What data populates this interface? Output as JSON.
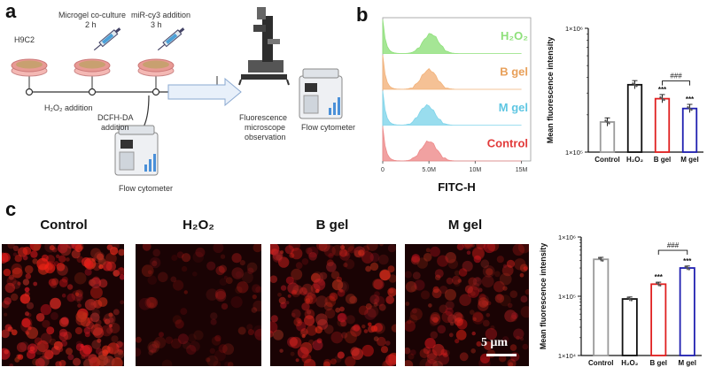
{
  "panels": {
    "a": "a",
    "b": "b",
    "c": "c"
  },
  "workflow": {
    "step1": "H9C2",
    "step2_line1": "Microgel co-culture",
    "step2_line2": "2 h",
    "step3_line1": "miR-cy3 addition",
    "step3_line2": "3 h",
    "below1": "H₂O₂ addition",
    "below2_line1": "DCFH-DA",
    "below2_line2": "addition",
    "flow1": "Flow cytometer",
    "micro_line1": "Fluorescence",
    "micro_line2": "microscope",
    "micro_line3": "observation",
    "flow2": "Flow cytometer"
  },
  "histogram": {
    "xlabel": "FITC-H",
    "xticks": [
      "0",
      "5.0M",
      "10M",
      "15M"
    ],
    "series": [
      {
        "name": "H₂O₂",
        "color": "#8ee07a",
        "peak": 5.2
      },
      {
        "name": "B gel",
        "color": "#f2b27a",
        "peak": 5.0
      },
      {
        "name": "M gel",
        "color": "#7fd4ea",
        "peak": 4.8
      },
      {
        "name": "Control",
        "color": "#ee8a8a",
        "peak": 5.0
      }
    ],
    "label_colors": [
      "#8ee07a",
      "#e8a05a",
      "#5ec6e2",
      "#e23a3a"
    ]
  },
  "chart_b": {
    "type": "bar",
    "ylabel": "Mean fluorescence intensity",
    "yscale": "log",
    "ylim": [
      100000,
      1000000
    ],
    "ytick_labels": [
      "1×10⁵",
      "1×10⁶"
    ],
    "categories": [
      "Control",
      "H₂O₂",
      "B gel",
      "M gel"
    ],
    "values": [
      175000,
      350000,
      270000,
      225000
    ],
    "colors": [
      "#9a9a9a",
      "#111111",
      "#e02020",
      "#2020b0"
    ],
    "stars": [
      "",
      "",
      "***",
      "***"
    ],
    "bracket_label": "###"
  },
  "micrographs": {
    "titles": [
      "Control",
      "H₂O₂",
      "B gel",
      "M gel"
    ],
    "scale": "5 μm"
  },
  "chart_c": {
    "type": "bar",
    "ylabel": "Mean fluorescence intensity",
    "yscale": "log",
    "ylim": [
      10000,
      1000000
    ],
    "ytick_labels": [
      "1×10⁴",
      "1×10⁵",
      "1×10⁶"
    ],
    "categories": [
      "Control",
      "H₂O₂",
      "B gel",
      "M gel"
    ],
    "values": [
      420000,
      90000,
      160000,
      300000
    ],
    "colors": [
      "#9a9a9a",
      "#111111",
      "#e02020",
      "#2020b0"
    ],
    "stars": [
      "",
      "",
      "***",
      "***"
    ],
    "bracket_label": "###"
  }
}
